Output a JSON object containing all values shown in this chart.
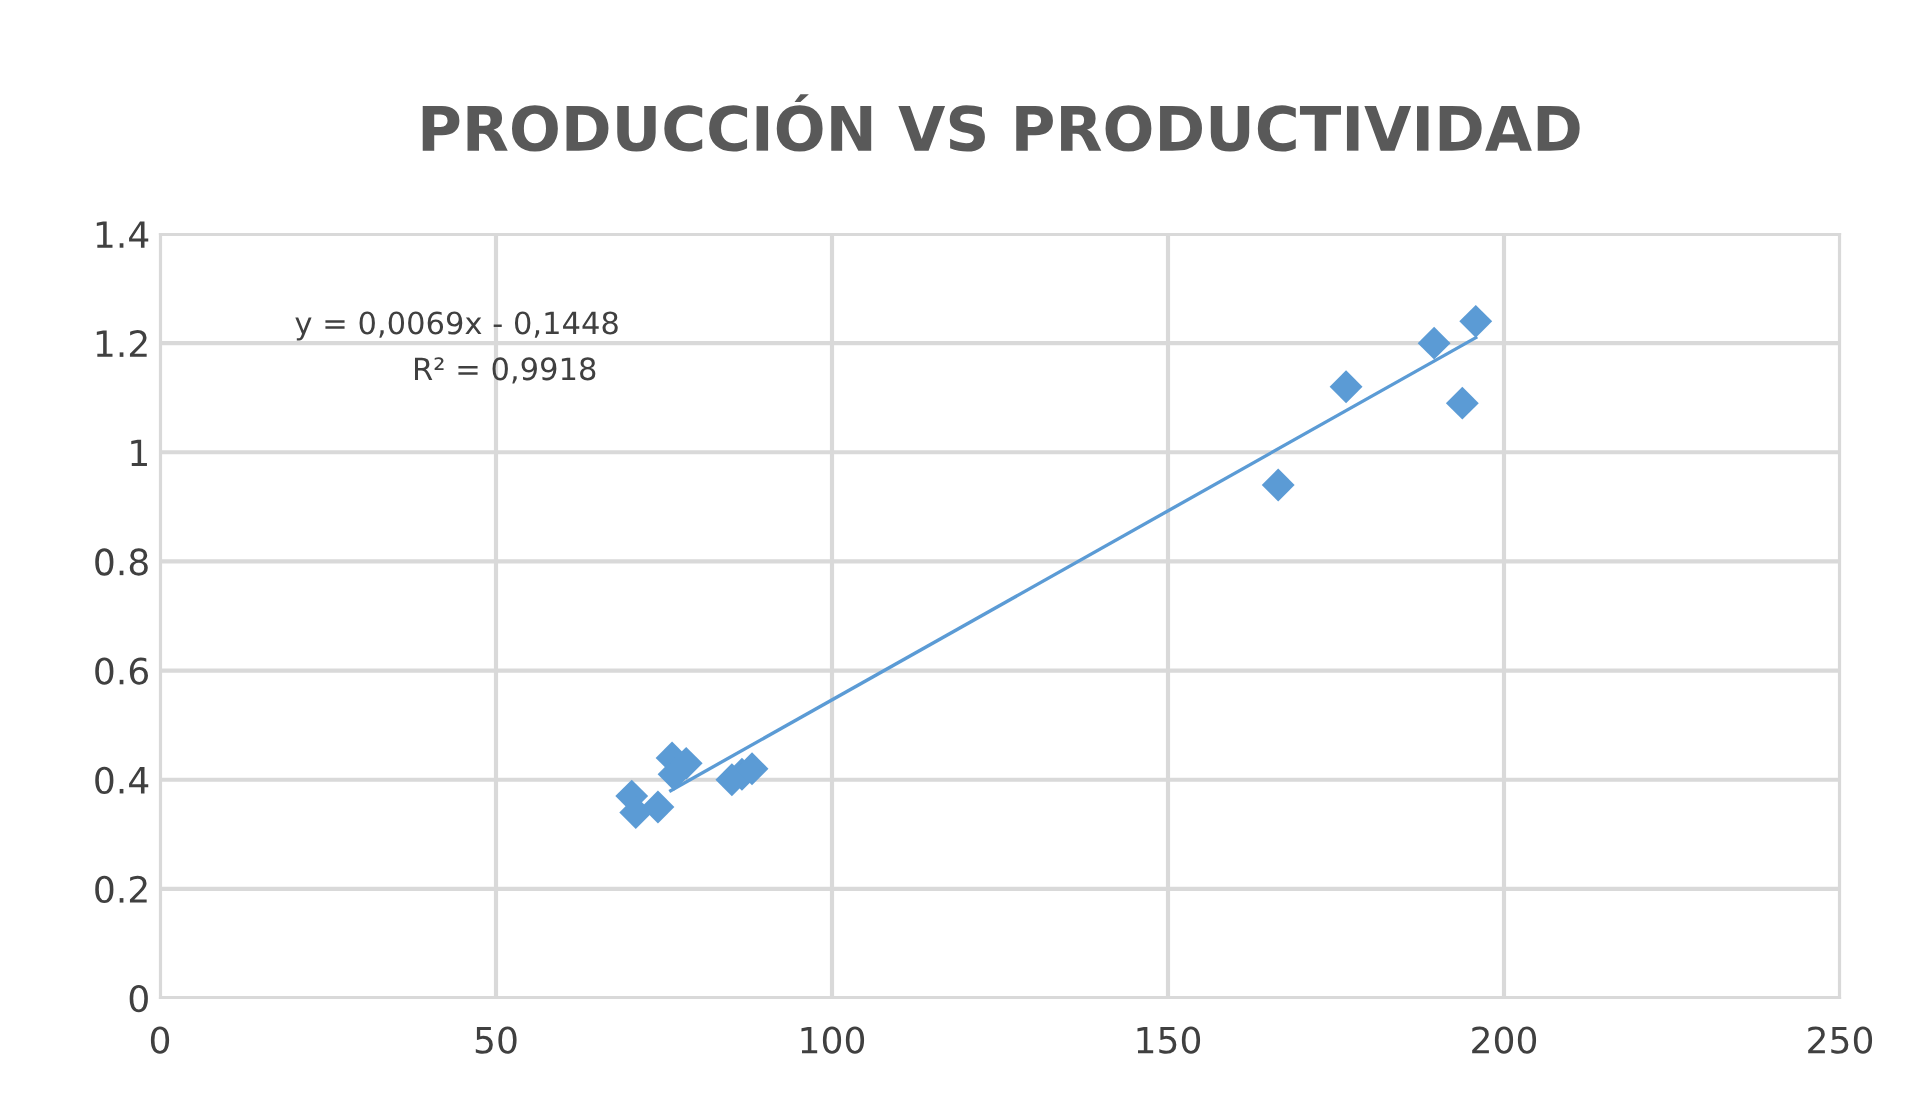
{
  "chart_data": {
    "type": "scatter",
    "title": "PRODUCCIÓN VS PRODUCTIVIDAD",
    "xlim": [
      0,
      250
    ],
    "xticks": [
      0,
      50,
      100,
      150,
      200,
      250
    ],
    "ylim": [
      0,
      1.4
    ],
    "yticks": [
      0,
      0.2,
      0.4,
      0.6,
      0.8,
      1,
      1.2,
      1.4
    ],
    "grid": true,
    "legend": false,
    "annotations": [
      "y = 0,0069x - 0,1448",
      "R² = 0,9918"
    ],
    "series": [
      {
        "marker": "diamond",
        "color": "#5b9bd5",
        "x": [
          70.2,
          70.8,
          74.1,
          76.2,
          76.5,
          78.3,
          85.1,
          86.6,
          88.1,
          166.4,
          176.5,
          189.6,
          193.8,
          195.8
        ],
        "values": [
          0.37,
          0.34,
          0.35,
          0.44,
          0.41,
          0.43,
          0.4,
          0.41,
          0.42,
          0.94,
          1.12,
          1.2,
          1.09,
          1.24
        ]
      },
      {
        "type": "line",
        "color": "#5b9bd5",
        "x": [
          76,
          195.8
        ],
        "values": [
          0.38,
          1.21
        ]
      }
    ]
  }
}
